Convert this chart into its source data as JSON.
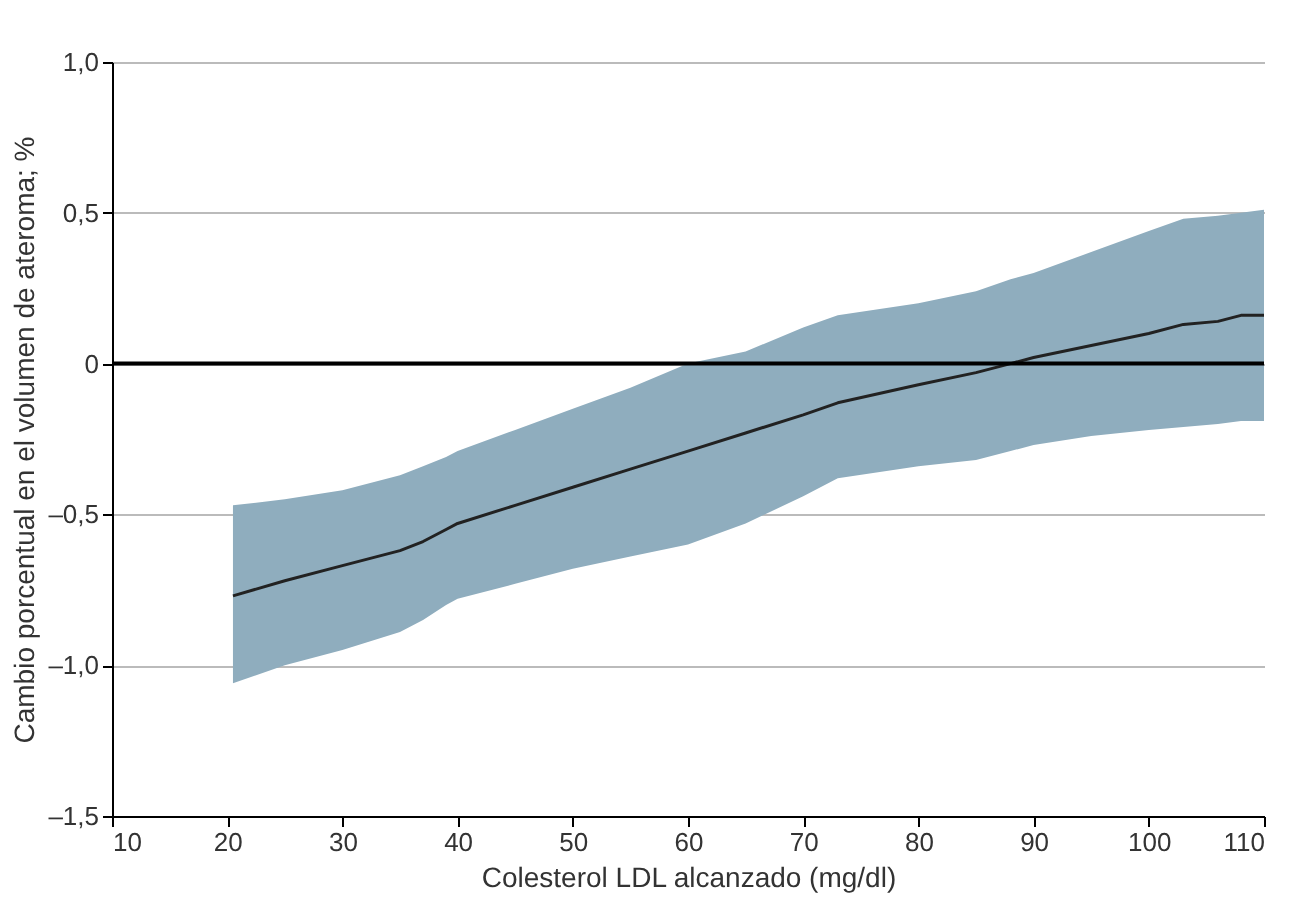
{
  "chart_data": {
    "type": "line",
    "xlabel": "Colesterol LDL alcanzado (mg/dl)",
    "ylabel": "Cambio porcentual en el volumen de ateroma; %",
    "xlim": [
      10,
      110
    ],
    "xticks": [
      10,
      20,
      30,
      40,
      50,
      60,
      70,
      80,
      90,
      100,
      110
    ],
    "ylim": [
      -1.5,
      1.0
    ],
    "yticks": [
      {
        "value": -1.5,
        "label": "–1,5"
      },
      {
        "value": -1.0,
        "label": "–1,0"
      },
      {
        "value": -0.5,
        "label": "–0,5"
      },
      0,
      {
        "value": 0.5,
        "label": "0,5"
      },
      {
        "value": 1.0,
        "label": "1,0"
      }
    ],
    "grid": "y",
    "marker": "none",
    "line_style": "solid",
    "ref_lines": [
      {
        "axis": "y",
        "value": 0,
        "color": "#000000"
      }
    ],
    "series": [
      {
        "color": "#222222",
        "x": [
          20.5,
          25,
          30,
          35,
          37,
          39,
          40,
          45,
          50,
          55,
          60,
          65,
          70,
          73,
          80,
          85,
          88,
          90,
          95,
          100,
          103,
          106,
          108,
          110
        ],
        "values": [
          -0.77,
          -0.72,
          -0.67,
          -0.62,
          -0.59,
          -0.55,
          -0.53,
          -0.47,
          -0.41,
          -0.35,
          -0.29,
          -0.23,
          -0.17,
          -0.13,
          -0.07,
          -0.03,
          0.0,
          0.02,
          0.06,
          0.1,
          0.13,
          0.14,
          0.16,
          0.16
        ],
        "lower": [
          -1.06,
          -1.0,
          -0.95,
          -0.89,
          -0.85,
          -0.8,
          -0.78,
          -0.73,
          -0.68,
          -0.64,
          -0.6,
          -0.53,
          -0.44,
          -0.38,
          -0.34,
          -0.32,
          -0.29,
          -0.27,
          -0.24,
          -0.22,
          -0.21,
          -0.2,
          -0.19,
          -0.19
        ],
        "upper": [
          -0.47,
          -0.45,
          -0.42,
          -0.37,
          -0.34,
          -0.31,
          -0.29,
          -0.22,
          -0.15,
          -0.08,
          0.0,
          0.04,
          0.12,
          0.16,
          0.2,
          0.24,
          0.28,
          0.3,
          0.37,
          0.44,
          0.48,
          0.49,
          0.5,
          0.51
        ]
      }
    ]
  }
}
